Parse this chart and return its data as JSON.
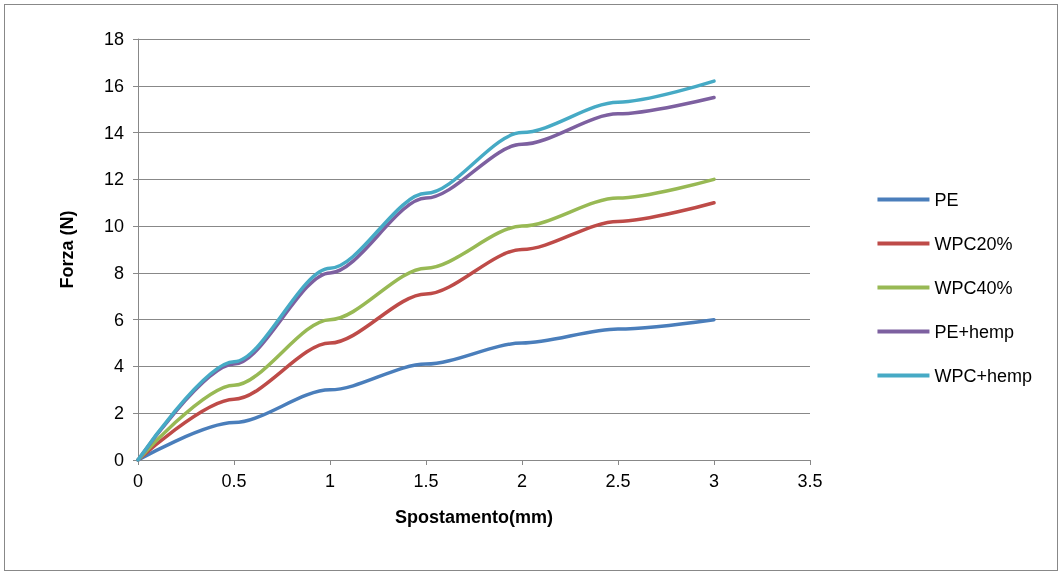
{
  "chart_data": {
    "type": "line",
    "xlabel": "Spostamento(mm)",
    "ylabel": "Forza (N)",
    "x": [
      0,
      0.5,
      1,
      1.5,
      2,
      2.5,
      3
    ],
    "series": [
      {
        "name": "PE",
        "color": "#4a7ebb",
        "values": [
          0,
          1.6,
          3,
          4.1,
          5,
          5.6,
          6
        ]
      },
      {
        "name": "WPC20%",
        "color": "#be4b48",
        "values": [
          0,
          2.6,
          5,
          7.1,
          9,
          10.2,
          11
        ]
      },
      {
        "name": "WPC40%",
        "color": "#98b954",
        "values": [
          0,
          3.2,
          6,
          8.2,
          10,
          11.2,
          12
        ]
      },
      {
        "name": "PE+hemp",
        "color": "#7d60a0",
        "values": [
          0,
          4.1,
          8,
          11.2,
          13.5,
          14.8,
          15.5
        ]
      },
      {
        "name": "WPC+hemp",
        "color": "#46aac5",
        "values": [
          0,
          4.2,
          8.2,
          11.4,
          14,
          15.3,
          16.2
        ]
      }
    ],
    "xlim": [
      0,
      3.5
    ],
    "xticks": [
      0,
      0.5,
      1,
      1.5,
      2,
      2.5,
      3,
      3.5
    ],
    "ylim": [
      0,
      18
    ],
    "yticks": [
      0,
      2,
      4,
      6,
      8,
      10,
      12,
      14,
      16,
      18
    ],
    "grid": "y",
    "legend": "right",
    "marker": "none",
    "line_style": "solid"
  }
}
